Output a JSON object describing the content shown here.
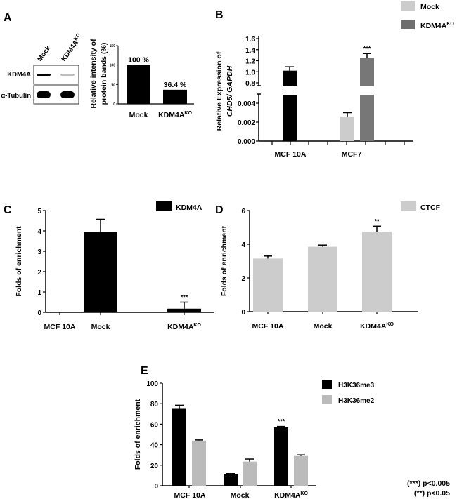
{
  "panel_labels": [
    "A",
    "B",
    "C",
    "D",
    "E"
  ],
  "western_blot": {
    "lanes": [
      {
        "label": "Mock"
      },
      {
        "label": "KDM4A",
        "sup": "KO"
      }
    ],
    "rows": [
      "KDM4A",
      "α-Tubulin"
    ],
    "band_intensity": [
      [
        1.0,
        0.25
      ],
      [
        1.0,
        1.0
      ]
    ]
  },
  "chart_data": [
    {
      "panel": "A",
      "type": "bar",
      "ylabel": [
        "Relative intensity of",
        "protein bands (%)"
      ],
      "categories": [
        {
          "label": "Mock"
        },
        {
          "label": "KDM4A",
          "sup": "KO"
        }
      ],
      "values": [
        100,
        36.4
      ],
      "data_labels": [
        "100 %",
        "36.4 %"
      ],
      "ylim": [
        0,
        150
      ],
      "yticks": [
        "0",
        "50",
        "100",
        "150"
      ],
      "color": "#000000"
    },
    {
      "panel": "B",
      "type": "bar",
      "broken_axis": true,
      "ylabel": [
        "Relative Expression of",
        "CHD5/ GAPDH"
      ],
      "categories": [
        {
          "label": "MCF 10A"
        },
        {
          "label": "MCF7"
        }
      ],
      "bars": [
        {
          "category": "MCF 10A",
          "series": "MCF 10A",
          "value": 1.02,
          "error": 0.07,
          "color": "#000000",
          "sig": ""
        },
        {
          "category": "MCF7",
          "series": "Mock",
          "value": 0.0026,
          "error": 0.0004,
          "color": "#cccccc",
          "sig": ""
        },
        {
          "category": "MCF7",
          "series": "KDM4A KO",
          "value": 1.25,
          "error": 0.08,
          "color": "#777777",
          "sig": "***"
        }
      ],
      "yticks_upper": [
        "0.8",
        "1.0",
        "1.2",
        "1.4",
        "1.6"
      ],
      "yticks_lower": [
        "0.000",
        "0.002",
        "0.004"
      ],
      "legend": [
        {
          "label": "Mock",
          "color": "#cccccc"
        },
        {
          "label": "KDM4A",
          "sup": "KO",
          "color": "#6e6e6e"
        }
      ]
    },
    {
      "panel": "C",
      "type": "bar",
      "ylabel": "Folds of enrichment",
      "categories": [
        {
          "label": "MCF 10A"
        },
        {
          "label": "Mock"
        },
        {
          "label": "KDM4A",
          "sup": "KO"
        }
      ],
      "values": [
        0,
        3.95,
        0.18
      ],
      "errors": [
        0,
        0.62,
        0.32
      ],
      "sig": [
        "",
        "",
        "***"
      ],
      "ylim": [
        0,
        5
      ],
      "yticks": [
        "0",
        "1",
        "2",
        "3",
        "4",
        "5"
      ],
      "color": "#000000",
      "legend": [
        {
          "label": "KDM4A",
          "color": "#000000"
        }
      ]
    },
    {
      "panel": "D",
      "type": "bar",
      "ylabel": "Folds of enrichment",
      "categories": [
        {
          "label": "MCF 10A"
        },
        {
          "label": "Mock"
        },
        {
          "label": "KDM4A",
          "sup": "KO"
        }
      ],
      "values": [
        3.15,
        3.85,
        4.75
      ],
      "errors": [
        0.15,
        0.1,
        0.32
      ],
      "sig": [
        "",
        "",
        "**"
      ],
      "ylim": [
        0,
        6
      ],
      "yticks": [
        "0",
        "2",
        "4",
        "6"
      ],
      "color": "#cccccc",
      "legend": [
        {
          "label": "CTCF",
          "color": "#cccccc"
        }
      ]
    },
    {
      "panel": "E",
      "type": "bar",
      "ylabel": "Folds of enrichment",
      "categories": [
        {
          "label": "MCF 10A"
        },
        {
          "label": "Mock"
        },
        {
          "label": "KDM4A",
          "sup": "KO"
        }
      ],
      "series": [
        {
          "name": "H3K36me3",
          "values": [
            75,
            11.5,
            57
          ],
          "errors": [
            3.5,
            0.3,
            0.8
          ],
          "sig": [
            "",
            "",
            "***"
          ],
          "color": "#000000"
        },
        {
          "name": "H3K36me2",
          "values": [
            44,
            23.5,
            29
          ],
          "errors": [
            0.6,
            2.5,
            1.0
          ],
          "sig": [
            "",
            "",
            ""
          ],
          "color": "#bbbbbb"
        }
      ],
      "ylim": [
        0,
        100
      ],
      "yticks": [
        "0",
        "20",
        "40",
        "60",
        "80",
        "100"
      ]
    }
  ],
  "footnotes": [
    "(***) p<0.005",
    "(**) p<0.05"
  ]
}
